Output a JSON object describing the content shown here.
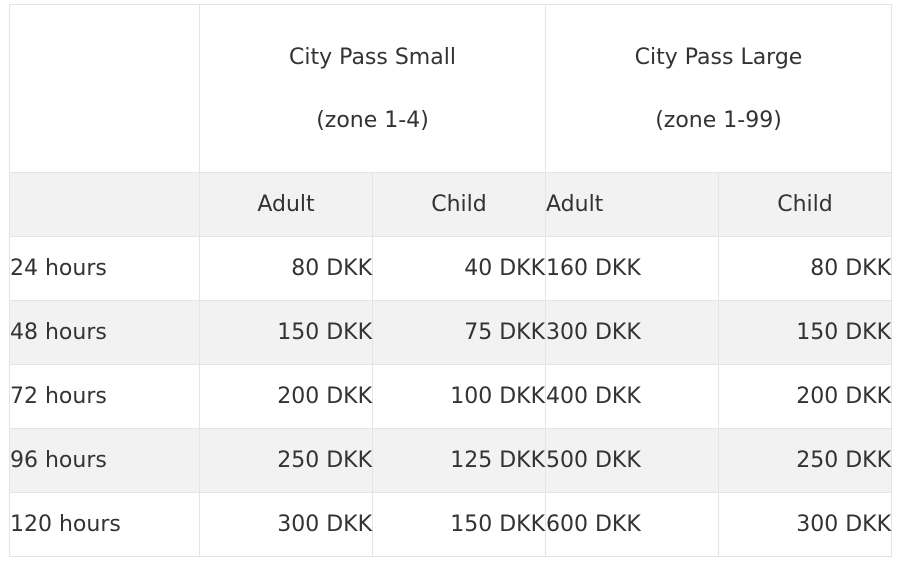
{
  "passes": [
    {
      "name": "City Pass Small",
      "zone": "(zone 1-4)"
    },
    {
      "name": "City Pass Large",
      "zone": "(zone 1-99)"
    }
  ],
  "subheaders": [
    "Adult",
    "Child",
    "Adult",
    "Child"
  ],
  "rows": [
    {
      "duration": "24 hours",
      "small_adult": "80 DKK",
      "small_child": "40 DKK",
      "large_adult": "160 DKK",
      "large_child": "80 DKK"
    },
    {
      "duration": "48 hours",
      "small_adult": "150 DKK",
      "small_child": "75 DKK",
      "large_adult": "300 DKK",
      "large_child": "150 DKK"
    },
    {
      "duration": "72 hours",
      "small_adult": "200 DKK",
      "small_child": "100 DKK",
      "large_adult": "400 DKK",
      "large_child": "200 DKK"
    },
    {
      "duration": "96 hours",
      "small_adult": "250 DKK",
      "small_child": "125 DKK",
      "large_adult": "500 DKK",
      "large_child": "250 DKK"
    },
    {
      "duration": "120 hours",
      "small_adult": "300 DKK",
      "small_child": "150 DKK",
      "large_adult": "600 DKK",
      "large_child": "300 DKK"
    }
  ],
  "colors": {
    "shaded_row": "#f2f2f2",
    "border": "#e4e4e4",
    "text": "#333333"
  }
}
